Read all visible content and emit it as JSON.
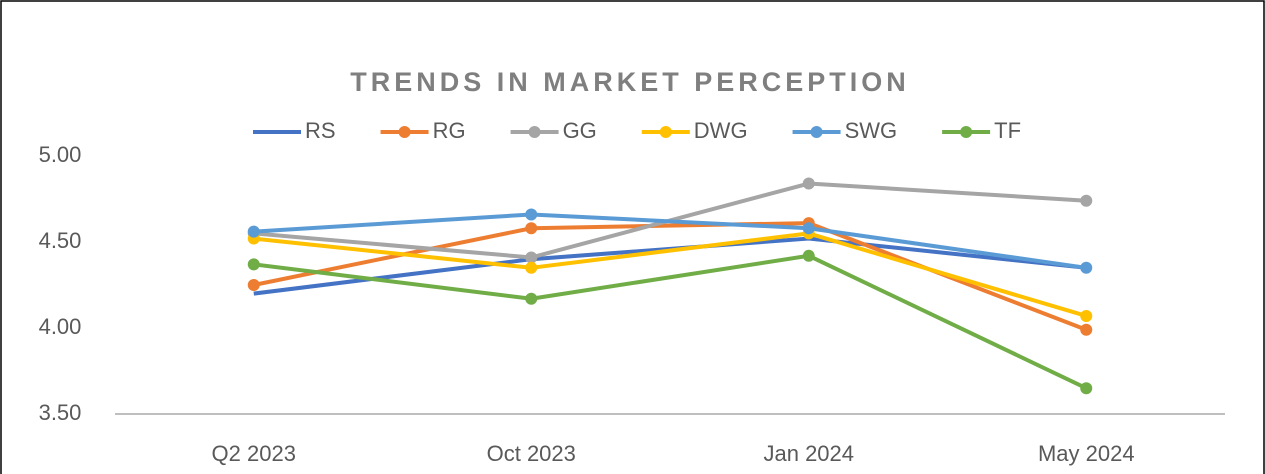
{
  "chart_data": {
    "type": "line",
    "title": "TRENDS IN MARKET PERCEPTION",
    "categories": [
      "Q2 2023",
      "Oct 2023",
      "Jan 2024",
      "May 2024"
    ],
    "series": [
      {
        "name": "RS",
        "color": "#4472c4",
        "marker": false,
        "values": [
          4.2,
          4.4,
          4.52,
          4.35
        ]
      },
      {
        "name": "RG",
        "color": "#ed7d31",
        "marker": true,
        "values": [
          4.25,
          4.58,
          4.61,
          3.99
        ]
      },
      {
        "name": "GG",
        "color": "#a5a5a5",
        "marker": true,
        "values": [
          4.55,
          4.41,
          4.84,
          4.74
        ]
      },
      {
        "name": "DWG",
        "color": "#ffc000",
        "marker": true,
        "values": [
          4.52,
          4.35,
          4.55,
          4.07
        ]
      },
      {
        "name": "SWG",
        "color": "#5b9bd5",
        "marker": true,
        "values": [
          4.56,
          4.66,
          4.58,
          4.35
        ]
      },
      {
        "name": "TF",
        "color": "#70ad47",
        "marker": true,
        "values": [
          4.37,
          4.17,
          4.42,
          3.65
        ]
      }
    ],
    "ylim": [
      3.5,
      5.0
    ],
    "yticks": [
      {
        "value": 3.5,
        "label": "3.50"
      },
      {
        "value": 4.0,
        "label": "4.00"
      },
      {
        "value": 4.5,
        "label": "4.50"
      },
      {
        "value": 5.0,
        "label": "5.00"
      }
    ],
    "grid": false,
    "legend": "top"
  }
}
